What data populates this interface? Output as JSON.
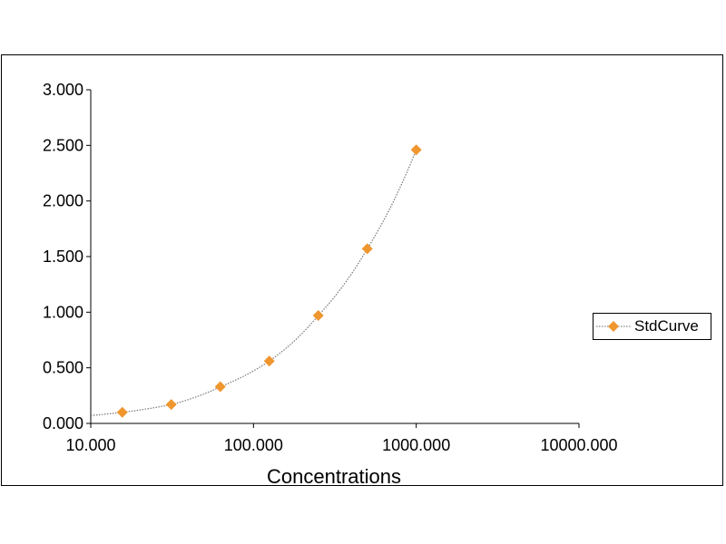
{
  "chart_data": {
    "type": "scatter",
    "x_scale": "log",
    "xlabel": "Concentrations",
    "ylabel": "",
    "title": "",
    "xlim": [
      10,
      10000
    ],
    "ylim": [
      0,
      3
    ],
    "x_ticks": [
      "10.000",
      "100.000",
      "1000.000",
      "10000.000"
    ],
    "y_ticks": [
      "0.000",
      "0.500",
      "1.000",
      "1.500",
      "2.000",
      "2.500",
      "3.000"
    ],
    "grid": false,
    "legend_position": "right",
    "series": [
      {
        "name": "StdCurve",
        "color": "#f0962f",
        "marker": "diamond",
        "trendline": "dotted",
        "x": [
          15.625,
          31.25,
          62.5,
          125,
          250,
          500,
          1000
        ],
        "y": [
          0.1,
          0.17,
          0.33,
          0.56,
          0.97,
          1.57,
          2.46
        ]
      }
    ]
  }
}
